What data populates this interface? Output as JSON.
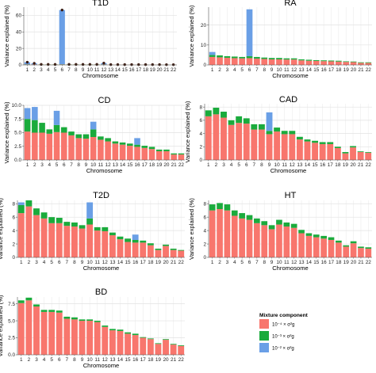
{
  "figure": {
    "legend": {
      "title": "Mixture component",
      "items": [
        {
          "label": "10⁻⁴ × σ²g",
          "color": "#f8766d"
        },
        {
          "label": "10⁻³ × σ²g",
          "color": "#1aab3c"
        },
        {
          "label": "10⁻² × σ²g",
          "color": "#6a9fe6"
        }
      ]
    }
  },
  "chart_data": [
    {
      "type": "bar",
      "title": "T1D",
      "xlabel": "Chromosome",
      "ylabel": "Variance explained (%)",
      "categories": [
        "1",
        "2",
        "3",
        "4",
        "5",
        "6",
        "7",
        "8",
        "9",
        "10",
        "11",
        "12",
        "13",
        "14",
        "15",
        "16",
        "17",
        "18",
        "19",
        "20",
        "21",
        "22"
      ],
      "ylim": [
        0,
        70
      ],
      "yticks": [
        0,
        20,
        40,
        60
      ],
      "stacked": true,
      "series": [
        {
          "name": "10⁻⁴ × σ²g",
          "color": "#f8766d",
          "values": [
            0.5,
            0.5,
            0.4,
            0.4,
            0.4,
            0.5,
            0.4,
            0.4,
            0.4,
            0.4,
            0.4,
            0.4,
            0.3,
            0.3,
            0.3,
            0.3,
            0.3,
            0.3,
            0.3,
            0.3,
            0.2,
            0.2
          ]
        },
        {
          "name": "10⁻³ × σ²g",
          "color": "#1aab3c",
          "values": [
            0.3,
            0.2,
            0.2,
            0.2,
            0.2,
            0.3,
            0.2,
            0.2,
            0.2,
            0.2,
            0.2,
            0.3,
            0.1,
            0.1,
            0.1,
            0.1,
            0.1,
            0.1,
            0.1,
            0.1,
            0.1,
            0.1
          ]
        },
        {
          "name": "10⁻² × σ²g",
          "color": "#6a9fe6",
          "values": [
            2.5,
            1.3,
            0,
            0,
            0,
            65.7,
            0,
            0,
            0,
            0,
            0,
            1.5,
            0,
            0,
            0,
            0,
            0,
            0,
            0,
            0,
            0,
            0
          ]
        }
      ],
      "point_markers": true
    },
    {
      "type": "bar",
      "title": "RA",
      "xlabel": "Chromosome",
      "ylabel": "Variance explained (%)",
      "categories": [
        "1",
        "2",
        "3",
        "4",
        "5",
        "6",
        "7",
        "8",
        "9",
        "10",
        "11",
        "12",
        "13",
        "14",
        "15",
        "16",
        "17",
        "18",
        "19",
        "20",
        "21",
        "22"
      ],
      "ylim": [
        0,
        29
      ],
      "yticks": [
        0,
        10,
        20
      ],
      "stacked": true,
      "series": [
        {
          "name": "10⁻⁴ × σ²g",
          "color": "#f8766d",
          "values": [
            4.0,
            3.8,
            3.6,
            3.4,
            3.3,
            3.4,
            3.2,
            3.0,
            2.8,
            2.8,
            2.7,
            2.7,
            2.3,
            2.1,
            2.0,
            1.9,
            1.8,
            1.7,
            1.5,
            1.4,
            1.0,
            1.0
          ]
        },
        {
          "name": "10⁻³ × σ²g",
          "color": "#1aab3c",
          "values": [
            1.0,
            1.0,
            0.8,
            0.8,
            0.7,
            1.0,
            0.8,
            0.7,
            0.7,
            0.7,
            0.6,
            0.6,
            0.5,
            0.5,
            0.4,
            0.4,
            0.4,
            0.4,
            0.3,
            0.3,
            0.3,
            0.3
          ]
        },
        {
          "name": "10⁻² × σ²g",
          "color": "#6a9fe6",
          "values": [
            1.5,
            0,
            0,
            0,
            0,
            23.5,
            0,
            0,
            0,
            0,
            0,
            0,
            0,
            0,
            0,
            0,
            0,
            0,
            0,
            0,
            0,
            0
          ]
        }
      ]
    },
    {
      "type": "bar",
      "title": "CD",
      "xlabel": "Chromosome",
      "ylabel": "Variance explained (%)",
      "categories": [
        "1",
        "2",
        "3",
        "4",
        "5",
        "6",
        "7",
        "8",
        "9",
        "10",
        "11",
        "12",
        "13",
        "14",
        "15",
        "16",
        "17",
        "18",
        "19",
        "20",
        "21",
        "22"
      ],
      "ylim": [
        0,
        10
      ],
      "yticks": [
        0.0,
        2.5,
        5.0,
        7.5,
        10.0
      ],
      "stacked": true,
      "series": [
        {
          "name": "10⁻⁴ × σ²g",
          "color": "#f8766d",
          "values": [
            5.2,
            5.0,
            5.0,
            4.8,
            5.1,
            5.0,
            4.5,
            4.0,
            3.9,
            4.2,
            3.7,
            3.4,
            3.0,
            2.8,
            2.6,
            2.4,
            2.2,
            2.0,
            1.6,
            1.6,
            1.0,
            1.0
          ]
        },
        {
          "name": "10⁻³ × σ²g",
          "color": "#1aab3c",
          "values": [
            2.3,
            2.3,
            1.8,
            0.8,
            1.3,
            1.0,
            0.7,
            0.7,
            0.8,
            1.4,
            0.6,
            0.6,
            0.4,
            0.4,
            0.4,
            0.4,
            0.4,
            0.4,
            0.3,
            0.3,
            0.2,
            0.2
          ]
        },
        {
          "name": "10⁻² × σ²g",
          "color": "#6a9fe6",
          "values": [
            2.0,
            2.4,
            0,
            0,
            2.6,
            0,
            0,
            0,
            0,
            1.4,
            0,
            0,
            0,
            0,
            0,
            1.2,
            0,
            0,
            0,
            0,
            0,
            0
          ]
        }
      ]
    },
    {
      "type": "bar",
      "title": "CAD",
      "xlabel": "Chromosome",
      "ylabel": "Variance explained (%)",
      "categories": [
        "1",
        "2",
        "3",
        "4",
        "5",
        "6",
        "7",
        "8",
        "9",
        "10",
        "11",
        "12",
        "13",
        "14",
        "15",
        "16",
        "17",
        "18",
        "19",
        "20",
        "21",
        "22"
      ],
      "ylim": [
        0,
        8.5
      ],
      "yticks": [
        0,
        2,
        4,
        6,
        8
      ],
      "stacked": true,
      "series": [
        {
          "name": "10⁻⁴ × σ²g",
          "color": "#f8766d",
          "values": [
            6.6,
            6.9,
            6.4,
            5.3,
            5.6,
            5.5,
            4.6,
            4.6,
            3.9,
            4.3,
            3.9,
            3.9,
            3.1,
            2.8,
            2.6,
            2.4,
            2.4,
            1.8,
            1.0,
            1.9,
            1.2,
            1.1
          ]
        },
        {
          "name": "10⁻³ × σ²g",
          "color": "#1aab3c",
          "values": [
            0.9,
            1.0,
            0.9,
            0.7,
            1.0,
            0.8,
            0.8,
            0.8,
            0.5,
            0.6,
            0.5,
            0.5,
            0.4,
            0.3,
            0.3,
            0.3,
            0.3,
            0.2,
            0.2,
            0.2,
            0.1,
            0.1
          ]
        },
        {
          "name": "10⁻² × σ²g",
          "color": "#6a9fe6",
          "values": [
            0,
            0,
            0,
            0,
            0,
            0,
            0,
            0,
            2.8,
            0,
            0,
            0,
            0,
            0,
            0,
            0,
            0,
            0,
            0,
            0,
            0,
            0
          ]
        }
      ]
    },
    {
      "type": "bar",
      "title": "T2D",
      "xlabel": "Chromosome",
      "ylabel": "Variance explained (%)",
      "categories": [
        "1",
        "2",
        "3",
        "4",
        "5",
        "6",
        "7",
        "8",
        "9",
        "10",
        "11",
        "12",
        "13",
        "14",
        "15",
        "16",
        "17",
        "18",
        "19",
        "20",
        "21",
        "22"
      ],
      "ylim": [
        0,
        8.5
      ],
      "yticks": [
        0,
        2,
        4,
        6,
        8
      ],
      "stacked": true,
      "series": [
        {
          "name": "10⁻⁴ × σ²g",
          "color": "#f8766d",
          "values": [
            6.6,
            7.6,
            6.3,
            5.8,
            5.1,
            5.1,
            4.7,
            4.6,
            4.3,
            4.9,
            4.0,
            3.9,
            3.3,
            2.7,
            2.3,
            2.2,
            2.2,
            1.8,
            1.1,
            1.7,
            1.1,
            1.0
          ]
        },
        {
          "name": "10⁻³ × σ²g",
          "color": "#1aab3c",
          "values": [
            1.2,
            0.9,
            1.0,
            0.9,
            0.9,
            0.8,
            0.6,
            0.6,
            0.5,
            0.9,
            0.5,
            0.6,
            0.4,
            0.4,
            0.5,
            0.4,
            0.3,
            0.3,
            0.2,
            0.2,
            0.2,
            0.1
          ]
        },
        {
          "name": "10⁻² × σ²g",
          "color": "#6a9fe6",
          "values": [
            0.4,
            0,
            0,
            0,
            0,
            0,
            0,
            0,
            0,
            2.4,
            0,
            0,
            0,
            0,
            0,
            0.8,
            0,
            0,
            0,
            0,
            0,
            0
          ]
        }
      ]
    },
    {
      "type": "bar",
      "title": "HT",
      "xlabel": "Chromosome",
      "ylabel": "Variance explained (%)",
      "categories": [
        "1",
        "2",
        "3",
        "4",
        "5",
        "6",
        "7",
        "8",
        "9",
        "10",
        "11",
        "12",
        "13",
        "14",
        "15",
        "16",
        "17",
        "18",
        "19",
        "20",
        "21",
        "22"
      ],
      "ylim": [
        0,
        8.5
      ],
      "yticks": [
        0,
        2,
        4,
        6,
        8
      ],
      "stacked": true,
      "series": [
        {
          "name": "10⁻⁴ × σ²g",
          "color": "#f8766d",
          "values": [
            7.0,
            7.2,
            7.0,
            6.2,
            5.8,
            5.6,
            5.1,
            4.8,
            4.2,
            4.9,
            4.6,
            4.4,
            3.6,
            3.2,
            3.0,
            2.8,
            2.6,
            2.2,
            1.6,
            2.1,
            1.4,
            1.3
          ]
        },
        {
          "name": "10⁻³ × σ²g",
          "color": "#1aab3c",
          "values": [
            0.9,
            0.9,
            0.9,
            0.8,
            0.8,
            0.7,
            0.7,
            0.6,
            0.6,
            0.7,
            0.6,
            0.6,
            0.5,
            0.4,
            0.4,
            0.4,
            0.4,
            0.3,
            0.2,
            0.3,
            0.2,
            0.2
          ]
        },
        {
          "name": "10⁻² × σ²g",
          "color": "#6a9fe6",
          "values": [
            0,
            0,
            0,
            0,
            0,
            0,
            0,
            0,
            0,
            0,
            0,
            0,
            0,
            0,
            0,
            0,
            0,
            0,
            0,
            0,
            0,
            0
          ]
        }
      ]
    },
    {
      "type": "bar",
      "title": "BD",
      "xlabel": "Chromosome",
      "ylabel": "Variance explained (%)",
      "categories": [
        "1",
        "2",
        "3",
        "4",
        "5",
        "6",
        "7",
        "8",
        "9",
        "10",
        "11",
        "12",
        "13",
        "14",
        "15",
        "16",
        "17",
        "18",
        "19",
        "20",
        "21",
        "22"
      ],
      "ylim": [
        0,
        8.5
      ],
      "yticks": [
        0.0,
        2.5,
        5.0,
        7.5
      ],
      "stacked": true,
      "series": [
        {
          "name": "10⁻⁴ × σ²g",
          "color": "#f8766d",
          "values": [
            7.6,
            8.0,
            7.1,
            6.3,
            6.3,
            6.2,
            5.3,
            5.2,
            5.0,
            5.0,
            4.8,
            4.1,
            3.6,
            3.5,
            3.1,
            2.9,
            2.5,
            2.3,
            1.6,
            2.2,
            1.5,
            1.3
          ]
        },
        {
          "name": "10⁻³ × σ²g",
          "color": "#1aab3c",
          "values": [
            0.4,
            0.4,
            0.3,
            0.3,
            0.3,
            0.3,
            0.3,
            0.3,
            0.2,
            0.2,
            0.2,
            0.2,
            0.2,
            0.2,
            0.2,
            0.2,
            0.1,
            0.1,
            0.1,
            0.1,
            0.1,
            0.1
          ]
        },
        {
          "name": "10⁻² × σ²g",
          "color": "#6a9fe6",
          "values": [
            0,
            0,
            0,
            0,
            0,
            0,
            0,
            0,
            0,
            0,
            0,
            0,
            0,
            0,
            0,
            0,
            0,
            0,
            0,
            0,
            0,
            0
          ]
        }
      ]
    }
  ]
}
